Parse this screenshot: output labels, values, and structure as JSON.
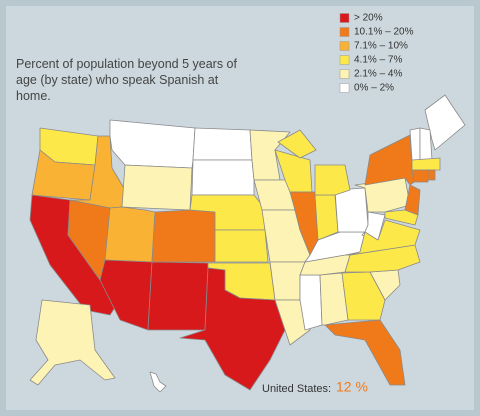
{
  "title": "Percent of population beyond 5 years of age (by state) who speak Spanish at home.",
  "legend": [
    {
      "label": "> 20%",
      "color": "#d7191c"
    },
    {
      "label": "10.1% – 20%",
      "color": "#f07a1a"
    },
    {
      "label": "7.1% – 10%",
      "color": "#f9b233"
    },
    {
      "label": "4.1% – 7%",
      "color": "#fde84a"
    },
    {
      "label": "2.1% – 4%",
      "color": "#fdf3b4"
    },
    {
      "label": "0% – 2%",
      "color": "#ffffff"
    }
  ],
  "states": [
    3,
    2,
    0,
    2,
    1,
    5,
    4,
    2,
    0,
    1,
    0,
    5,
    5,
    3,
    3,
    3,
    0,
    4,
    4,
    4,
    4,
    4,
    3,
    1,
    5,
    4,
    3,
    1,
    4,
    3,
    4,
    5,
    3,
    5,
    3,
    5,
    3,
    4,
    1,
    1,
    3,
    5,
    5,
    5,
    3,
    1,
    1,
    4,
    5,
    3
  ],
  "footer": {
    "label": "United States:",
    "value": "12 %"
  }
}
